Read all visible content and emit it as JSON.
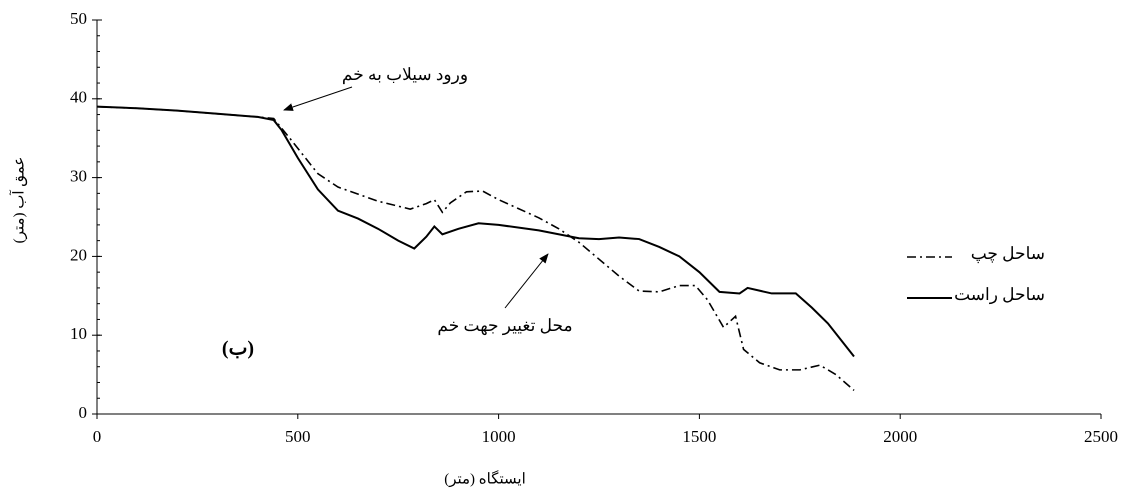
{
  "chart_data": {
    "type": "line",
    "ylabel": "عمق آب (متر)",
    "xlabel": "ایستگاه (متر)",
    "panel_label": "(ب)",
    "annotations": [
      "ورود سیلاب به خم",
      "محل تغییر جهت خم"
    ],
    "xlim": [
      0,
      2500
    ],
    "xticks": [
      0,
      500,
      1000,
      1500,
      2000,
      2500
    ],
    "ylim": [
      0,
      50
    ],
    "yticks": [
      0,
      10,
      20,
      30,
      40,
      50
    ],
    "legend": "right",
    "series": [
      {
        "name": "ساحل چپ",
        "color": "#000000",
        "dash": "dashdot",
        "x": [
          0,
          100,
          200,
          300,
          400,
          440,
          480,
          550,
          600,
          700,
          780,
          820,
          840,
          860,
          880,
          920,
          960,
          1000,
          1100,
          1150,
          1200,
          1300,
          1350,
          1400,
          1450,
          1490,
          1520,
          1560,
          1590,
          1610,
          1650,
          1700,
          1750,
          1800,
          1840,
          1885
        ],
        "values": [
          39,
          38.8,
          38.5,
          38.1,
          37.7,
          37.5,
          35,
          30.5,
          28.8,
          27,
          26,
          26.7,
          27.2,
          25.6,
          26.8,
          28.2,
          28.3,
          27.2,
          24.9,
          23.5,
          21.8,
          17.5,
          15.6,
          15.5,
          16.3,
          16.3,
          14.5,
          11,
          12.4,
          8.2,
          6.5,
          5.6,
          5.6,
          6.2,
          5,
          3
        ]
      },
      {
        "name": "ساحل راست",
        "color": "#000000",
        "dash": "solid",
        "x": [
          0,
          100,
          200,
          300,
          400,
          440,
          460,
          500,
          550,
          600,
          650,
          700,
          750,
          790,
          820,
          840,
          860,
          900,
          950,
          1000,
          1100,
          1200,
          1250,
          1300,
          1350,
          1400,
          1450,
          1500,
          1550,
          1600,
          1620,
          1680,
          1740,
          1780,
          1820,
          1885
        ],
        "values": [
          39,
          38.8,
          38.5,
          38.1,
          37.7,
          37.3,
          36,
          32.5,
          28.5,
          25.8,
          24.8,
          23.5,
          22,
          21,
          22.5,
          23.8,
          22.8,
          23.5,
          24.2,
          24,
          23.3,
          22.3,
          22.2,
          22.4,
          22.2,
          21.2,
          20,
          18,
          15.5,
          15.3,
          16,
          15.3,
          15.3,
          13.5,
          11.5,
          7.3
        ]
      }
    ]
  }
}
